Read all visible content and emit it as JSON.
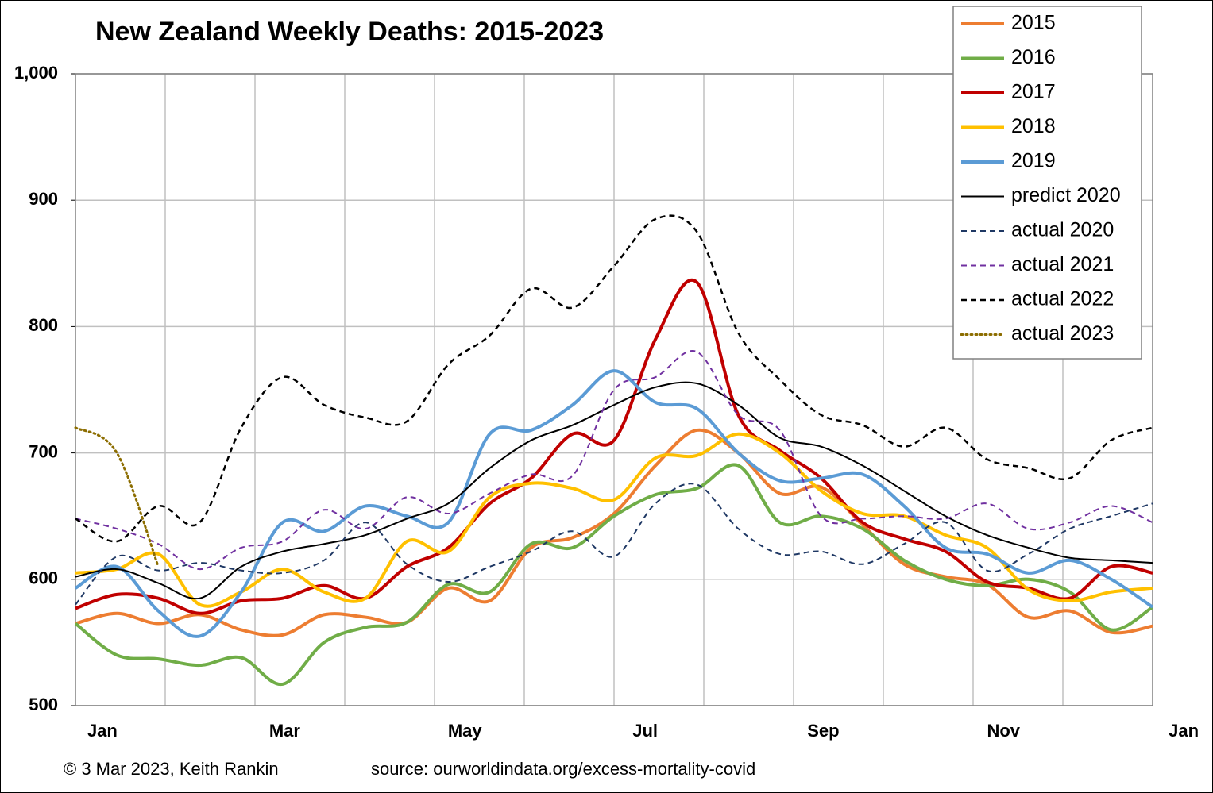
{
  "chart_data": {
    "type": "line",
    "title": "New Zealand Weekly Deaths: 2015-2023",
    "footer_left": "© 3 Mar 2023, Keith Rankin",
    "footer_right": "source: ourworldindata.org/excess-mortality-covid",
    "x": [
      0,
      2,
      4,
      6,
      8,
      10,
      12,
      14,
      16,
      18,
      20,
      22,
      24,
      26,
      28,
      30,
      32,
      34,
      36,
      38,
      40,
      42,
      44,
      46,
      48,
      50,
      52
    ],
    "xlim": [
      0,
      52
    ],
    "xticks": [
      {
        "value": 1.3,
        "label": "Jan"
      },
      {
        "value": 10.1,
        "label": "Mar"
      },
      {
        "value": 18.8,
        "label": "May"
      },
      {
        "value": 27.5,
        "label": "Jul"
      },
      {
        "value": 36.1,
        "label": "Sep"
      },
      {
        "value": 44.8,
        "label": "Nov"
      },
      {
        "value": 53.5,
        "label": "Jan"
      }
    ],
    "ylim": [
      500,
      1000
    ],
    "yticks": [
      500,
      600,
      700,
      800,
      900,
      {
        "value": 1000,
        "label": "1,000"
      }
    ],
    "grid": true,
    "legend": "top-right",
    "series": [
      {
        "name": "2015",
        "color": "#ed7d31",
        "style": "solid",
        "width": 4,
        "values": [
          565,
          573,
          565,
          572,
          560,
          556,
          572,
          570,
          566,
          593,
          583,
          625,
          633,
          652,
          690,
          718,
          700,
          668,
          673,
          643,
          612,
          602,
          596,
          570,
          575,
          558,
          563
        ]
      },
      {
        "name": "2016",
        "color": "#70ad47",
        "style": "solid",
        "width": 4,
        "values": [
          565,
          540,
          537,
          532,
          538,
          517,
          550,
          562,
          566,
          596,
          590,
          628,
          625,
          650,
          667,
          672,
          690,
          645,
          650,
          640,
          615,
          600,
          595,
          600,
          590,
          560,
          578
        ]
      },
      {
        "name": "2017",
        "color": "#c00000",
        "style": "solid",
        "width": 4,
        "values": [
          577,
          588,
          585,
          573,
          583,
          585,
          595,
          585,
          610,
          625,
          660,
          680,
          715,
          710,
          790,
          835,
          730,
          702,
          680,
          645,
          632,
          622,
          598,
          593,
          585,
          610,
          605
        ]
      },
      {
        "name": "2018",
        "color": "#ffc000",
        "style": "solid",
        "width": 4,
        "values": [
          605,
          608,
          620,
          580,
          590,
          608,
          590,
          585,
          630,
          622,
          665,
          676,
          672,
          663,
          696,
          698,
          715,
          700,
          670,
          652,
          650,
          635,
          625,
          592,
          583,
          590,
          593
        ]
      },
      {
        "name": "2019",
        "color": "#5b9bd5",
        "style": "solid",
        "width": 4,
        "values": [
          593,
          610,
          575,
          555,
          590,
          645,
          638,
          658,
          650,
          645,
          715,
          718,
          738,
          765,
          740,
          735,
          700,
          678,
          680,
          683,
          658,
          625,
          620,
          605,
          615,
          600,
          578
        ]
      },
      {
        "name": "predict 2020",
        "color": "#000000",
        "style": "solid",
        "width": 2,
        "values": [
          602,
          608,
          597,
          585,
          610,
          622,
          628,
          635,
          648,
          660,
          688,
          710,
          722,
          738,
          752,
          755,
          738,
          712,
          705,
          690,
          670,
          650,
          635,
          625,
          617,
          615,
          613
        ]
      },
      {
        "name": "actual 2020",
        "color": "#1f3864",
        "style": "dashed",
        "width": 2,
        "values": [
          580,
          618,
          607,
          613,
          607,
          605,
          615,
          645,
          612,
          598,
          610,
          622,
          638,
          618,
          660,
          675,
          640,
          620,
          622,
          612,
          628,
          645,
          607,
          620,
          640,
          650,
          660
        ]
      },
      {
        "name": "actual 2021",
        "color": "#7030a0",
        "style": "dashed",
        "width": 2,
        "values": [
          648,
          640,
          628,
          608,
          625,
          630,
          655,
          640,
          665,
          652,
          668,
          683,
          682,
          750,
          760,
          780,
          730,
          718,
          650,
          648,
          650,
          648,
          660,
          640,
          645,
          658,
          645
        ]
      },
      {
        "name": "actual 2022",
        "color": "#000000",
        "style": "dashed",
        "width": 2.5,
        "values": [
          648,
          630,
          658,
          645,
          720,
          760,
          738,
          728,
          725,
          770,
          793,
          830,
          815,
          848,
          885,
          875,
          795,
          758,
          730,
          722,
          705,
          720,
          695,
          688,
          680,
          710,
          720
        ]
      },
      {
        "name": "actual 2023",
        "color": "#8c6d00",
        "style": "dotted",
        "width": 3,
        "values": [
          720,
          700,
          610,
          null,
          null,
          null,
          null,
          null,
          null,
          null,
          null,
          null,
          null,
          null,
          null,
          null,
          null,
          null,
          null,
          null,
          null,
          null,
          null,
          null,
          null,
          null,
          null
        ]
      }
    ]
  }
}
